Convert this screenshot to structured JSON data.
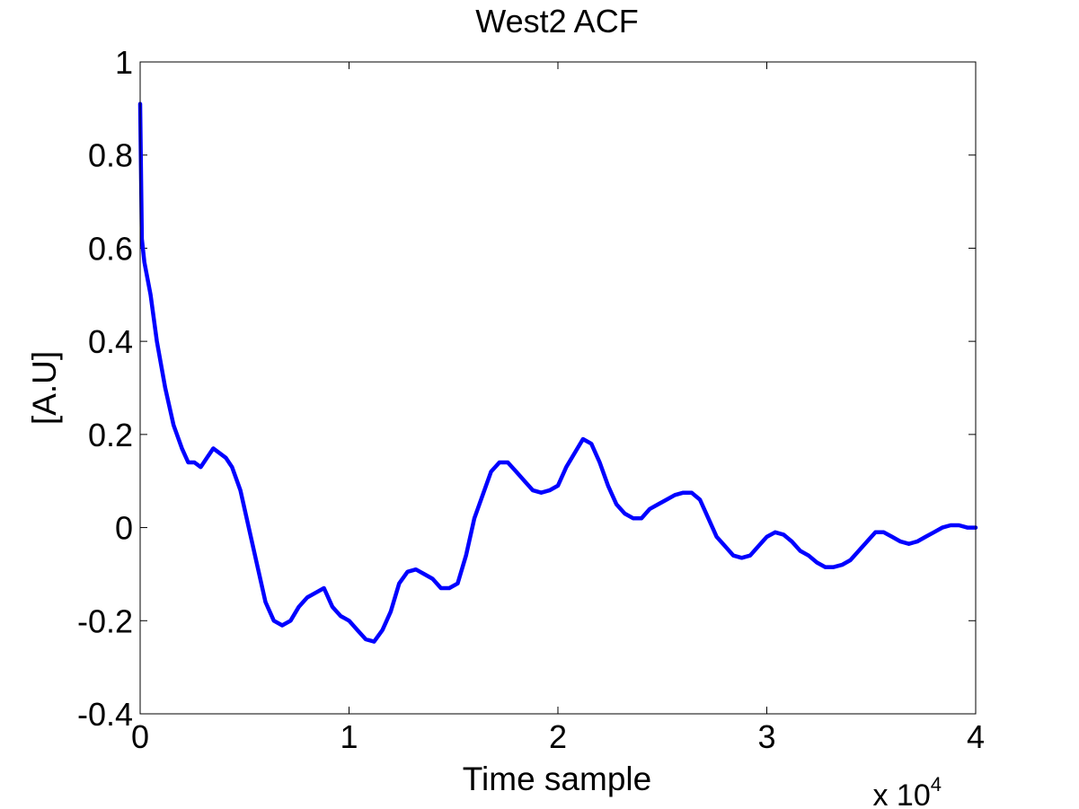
{
  "chart_data": {
    "type": "line",
    "title": "West2 ACF",
    "xlabel": "Time sample",
    "ylabel": "[A.U]",
    "x_multiplier": {
      "base": "x 10",
      "exponent": "4"
    },
    "xlim": [
      0,
      40000
    ],
    "ylim": [
      -0.4,
      1
    ],
    "xticks": [
      0,
      10000,
      20000,
      30000,
      40000
    ],
    "xtick_labels": [
      "0",
      "1",
      "2",
      "3",
      "4"
    ],
    "yticks": [
      -0.4,
      -0.2,
      0,
      0.2,
      0.4,
      0.6,
      0.8,
      1
    ],
    "ytick_labels": [
      "-0.4",
      "-0.2",
      "0",
      "0.2",
      "0.4",
      "0.6",
      "0.8",
      "1"
    ],
    "grid": false,
    "series": [
      {
        "color": "#0000ff",
        "x": [
          0,
          80,
          200,
          500,
          800,
          1200,
          1600,
          2000,
          2300,
          2600,
          2900,
          3200,
          3500,
          3800,
          4100,
          4400,
          4800,
          5200,
          5600,
          6000,
          6400,
          6800,
          7200,
          7600,
          8000,
          8400,
          8800,
          9200,
          9600,
          10000,
          10400,
          10800,
          11200,
          11600,
          12000,
          12400,
          12800,
          13200,
          13600,
          14000,
          14400,
          14800,
          15200,
          15600,
          16000,
          16400,
          16800,
          17200,
          17600,
          18000,
          18400,
          18800,
          19200,
          19600,
          20000,
          20400,
          20800,
          21200,
          21600,
          22000,
          22400,
          22800,
          23200,
          23600,
          24000,
          24400,
          24800,
          25200,
          25600,
          26000,
          26400,
          26800,
          27200,
          27600,
          28000,
          28400,
          28800,
          29200,
          29600,
          30000,
          30400,
          30800,
          31200,
          31600,
          32000,
          32400,
          32800,
          33200,
          33600,
          34000,
          34400,
          34800,
          35200,
          35600,
          36000,
          36400,
          36800,
          37200,
          37600,
          38000,
          38400,
          38800,
          39200,
          39600,
          40000
        ],
        "y": [
          0.91,
          0.62,
          0.57,
          0.5,
          0.4,
          0.3,
          0.22,
          0.17,
          0.14,
          0.14,
          0.13,
          0.15,
          0.17,
          0.16,
          0.15,
          0.13,
          0.08,
          0.0,
          -0.08,
          -0.16,
          -0.2,
          -0.21,
          -0.2,
          -0.17,
          -0.15,
          -0.14,
          -0.13,
          -0.17,
          -0.19,
          -0.2,
          -0.22,
          -0.24,
          -0.245,
          -0.22,
          -0.18,
          -0.12,
          -0.095,
          -0.09,
          -0.1,
          -0.11,
          -0.13,
          -0.13,
          -0.12,
          -0.06,
          0.02,
          0.07,
          0.12,
          0.14,
          0.14,
          0.12,
          0.1,
          0.08,
          0.075,
          0.08,
          0.09,
          0.13,
          0.16,
          0.19,
          0.18,
          0.14,
          0.09,
          0.05,
          0.03,
          0.02,
          0.02,
          0.04,
          0.05,
          0.06,
          0.07,
          0.075,
          0.075,
          0.06,
          0.02,
          -0.02,
          -0.04,
          -0.06,
          -0.065,
          -0.06,
          -0.04,
          -0.02,
          -0.01,
          -0.015,
          -0.03,
          -0.05,
          -0.06,
          -0.075,
          -0.085,
          -0.085,
          -0.08,
          -0.07,
          -0.05,
          -0.03,
          -0.01,
          -0.01,
          -0.02,
          -0.03,
          -0.035,
          -0.03,
          -0.02,
          -0.01,
          0.0,
          0.005,
          0.005,
          0.0,
          0.0
        ]
      }
    ]
  }
}
